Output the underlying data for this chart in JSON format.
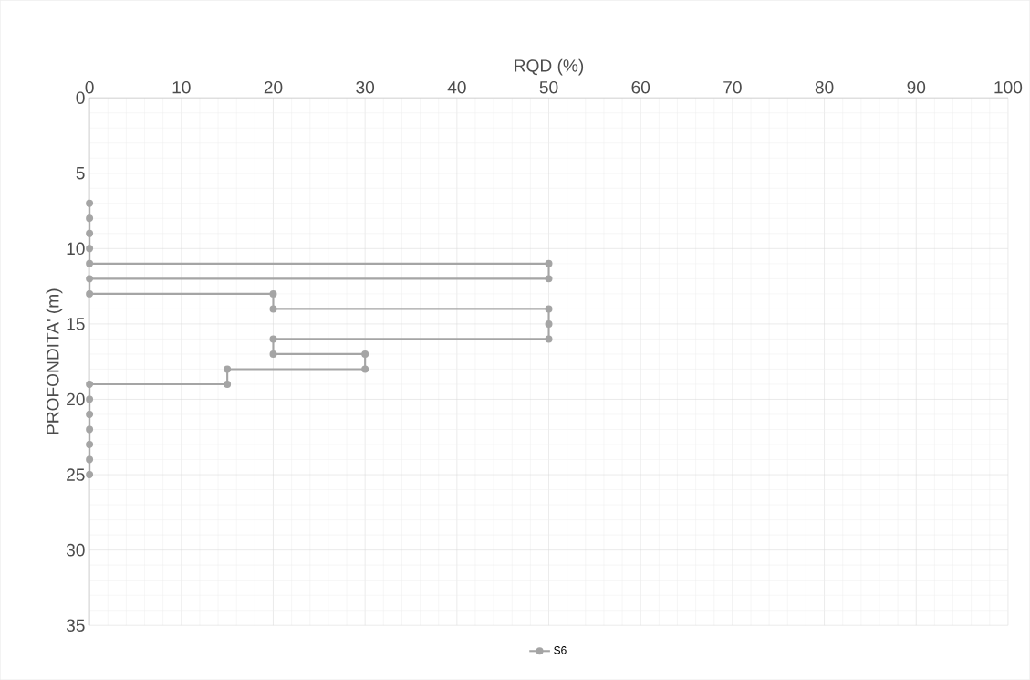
{
  "chart_data": {
    "type": "line",
    "xlabel": "RQD (%)",
    "ylabel": "PROFONDITA' (m)",
    "xlim": [
      0,
      100
    ],
    "xticks": [
      0,
      10,
      20,
      30,
      40,
      50,
      60,
      70,
      80,
      90,
      100
    ],
    "ylim": [
      35,
      0
    ],
    "yticks": [
      0,
      5,
      10,
      15,
      20,
      25,
      30,
      35
    ],
    "grid": true,
    "legend": "bottom",
    "marker": "circle",
    "line_style": "solid",
    "series": [
      {
        "name": "S6",
        "color": "#a5a5a5",
        "x": [
          0,
          0,
          0,
          0,
          0,
          50,
          50,
          0,
          0,
          20,
          20,
          50,
          50,
          50,
          20,
          20,
          30,
          30,
          15,
          15,
          0,
          0,
          0,
          0,
          0,
          0,
          0
        ],
        "values": [
          7,
          8,
          9,
          10,
          11,
          11,
          12,
          12,
          13,
          13,
          14,
          14,
          15,
          16,
          16,
          17,
          17,
          18,
          18,
          19,
          19,
          20,
          21,
          22,
          23,
          24,
          25
        ]
      }
    ]
  }
}
